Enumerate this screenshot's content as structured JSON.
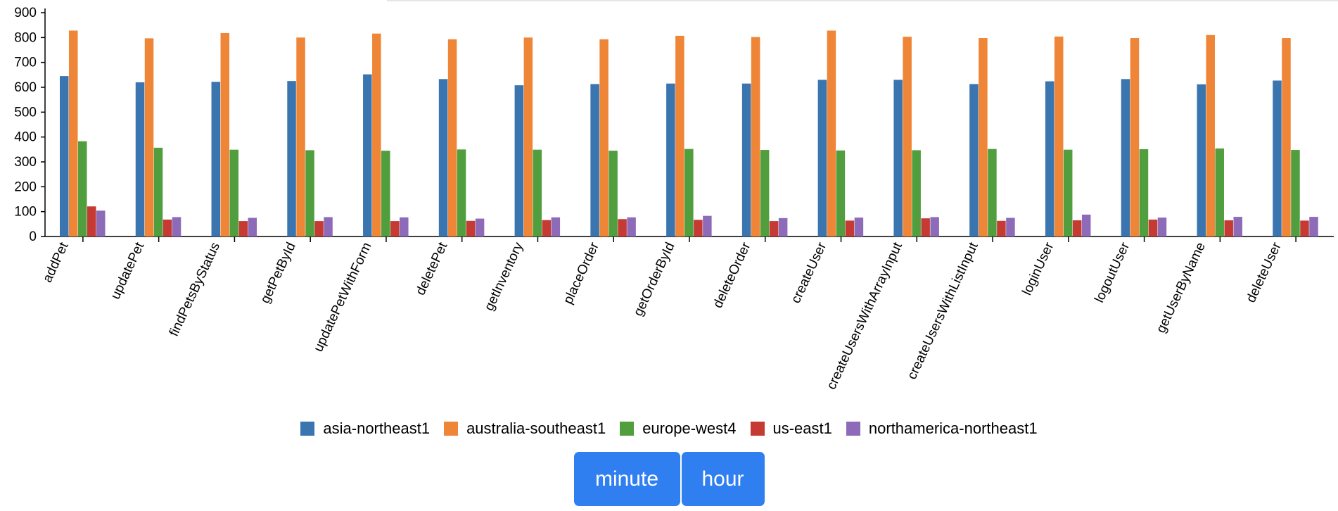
{
  "chart_data": {
    "type": "bar",
    "categories": [
      "addPet",
      "updatePet",
      "findPetsByStatus",
      "getPetById",
      "updatePetWithForm",
      "deletePet",
      "getInventory",
      "placeOrder",
      "getOrderById",
      "deleteOrder",
      "createUser",
      "createUsersWithArrayInput",
      "createUsersWithListInput",
      "loginUser",
      "logoutUser",
      "getUserByName",
      "deleteUser"
    ],
    "series": [
      {
        "name": "asia-northeast1",
        "color": "#3a75af",
        "values": [
          645,
          620,
          622,
          625,
          652,
          633,
          608,
          613,
          615,
          615,
          630,
          630,
          613,
          624,
          633,
          612,
          627
        ]
      },
      {
        "name": "australia-southeast1",
        "color": "#ef8536",
        "values": [
          828,
          797,
          818,
          800,
          816,
          793,
          800,
          793,
          807,
          802,
          828,
          803,
          798,
          804,
          798,
          810,
          798
        ]
      },
      {
        "name": "europe-west4",
        "color": "#519e3e",
        "values": [
          383,
          357,
          349,
          347,
          345,
          350,
          349,
          345,
          352,
          348,
          346,
          347,
          352,
          349,
          351,
          354,
          348
        ]
      },
      {
        "name": "us-east1",
        "color": "#c53a32",
        "values": [
          121,
          68,
          62,
          62,
          62,
          63,
          66,
          70,
          67,
          62,
          64,
          73,
          63,
          65,
          68,
          65,
          64
        ]
      },
      {
        "name": "northamerica-northeast1",
        "color": "#8d6bb8",
        "values": [
          104,
          78,
          75,
          78,
          77,
          72,
          77,
          77,
          83,
          74,
          76,
          78,
          75,
          88,
          76,
          79,
          79
        ]
      }
    ],
    "yticks": [
      0,
      100,
      200,
      300,
      400,
      500,
      600,
      700,
      800,
      900
    ],
    "ylim": [
      0,
      900
    ],
    "xlabel": "",
    "ylabel": "",
    "title": "",
    "legend_position": "bottom-center",
    "grid": false
  },
  "controls": {
    "minute_label": "minute",
    "hour_label": "hour"
  }
}
